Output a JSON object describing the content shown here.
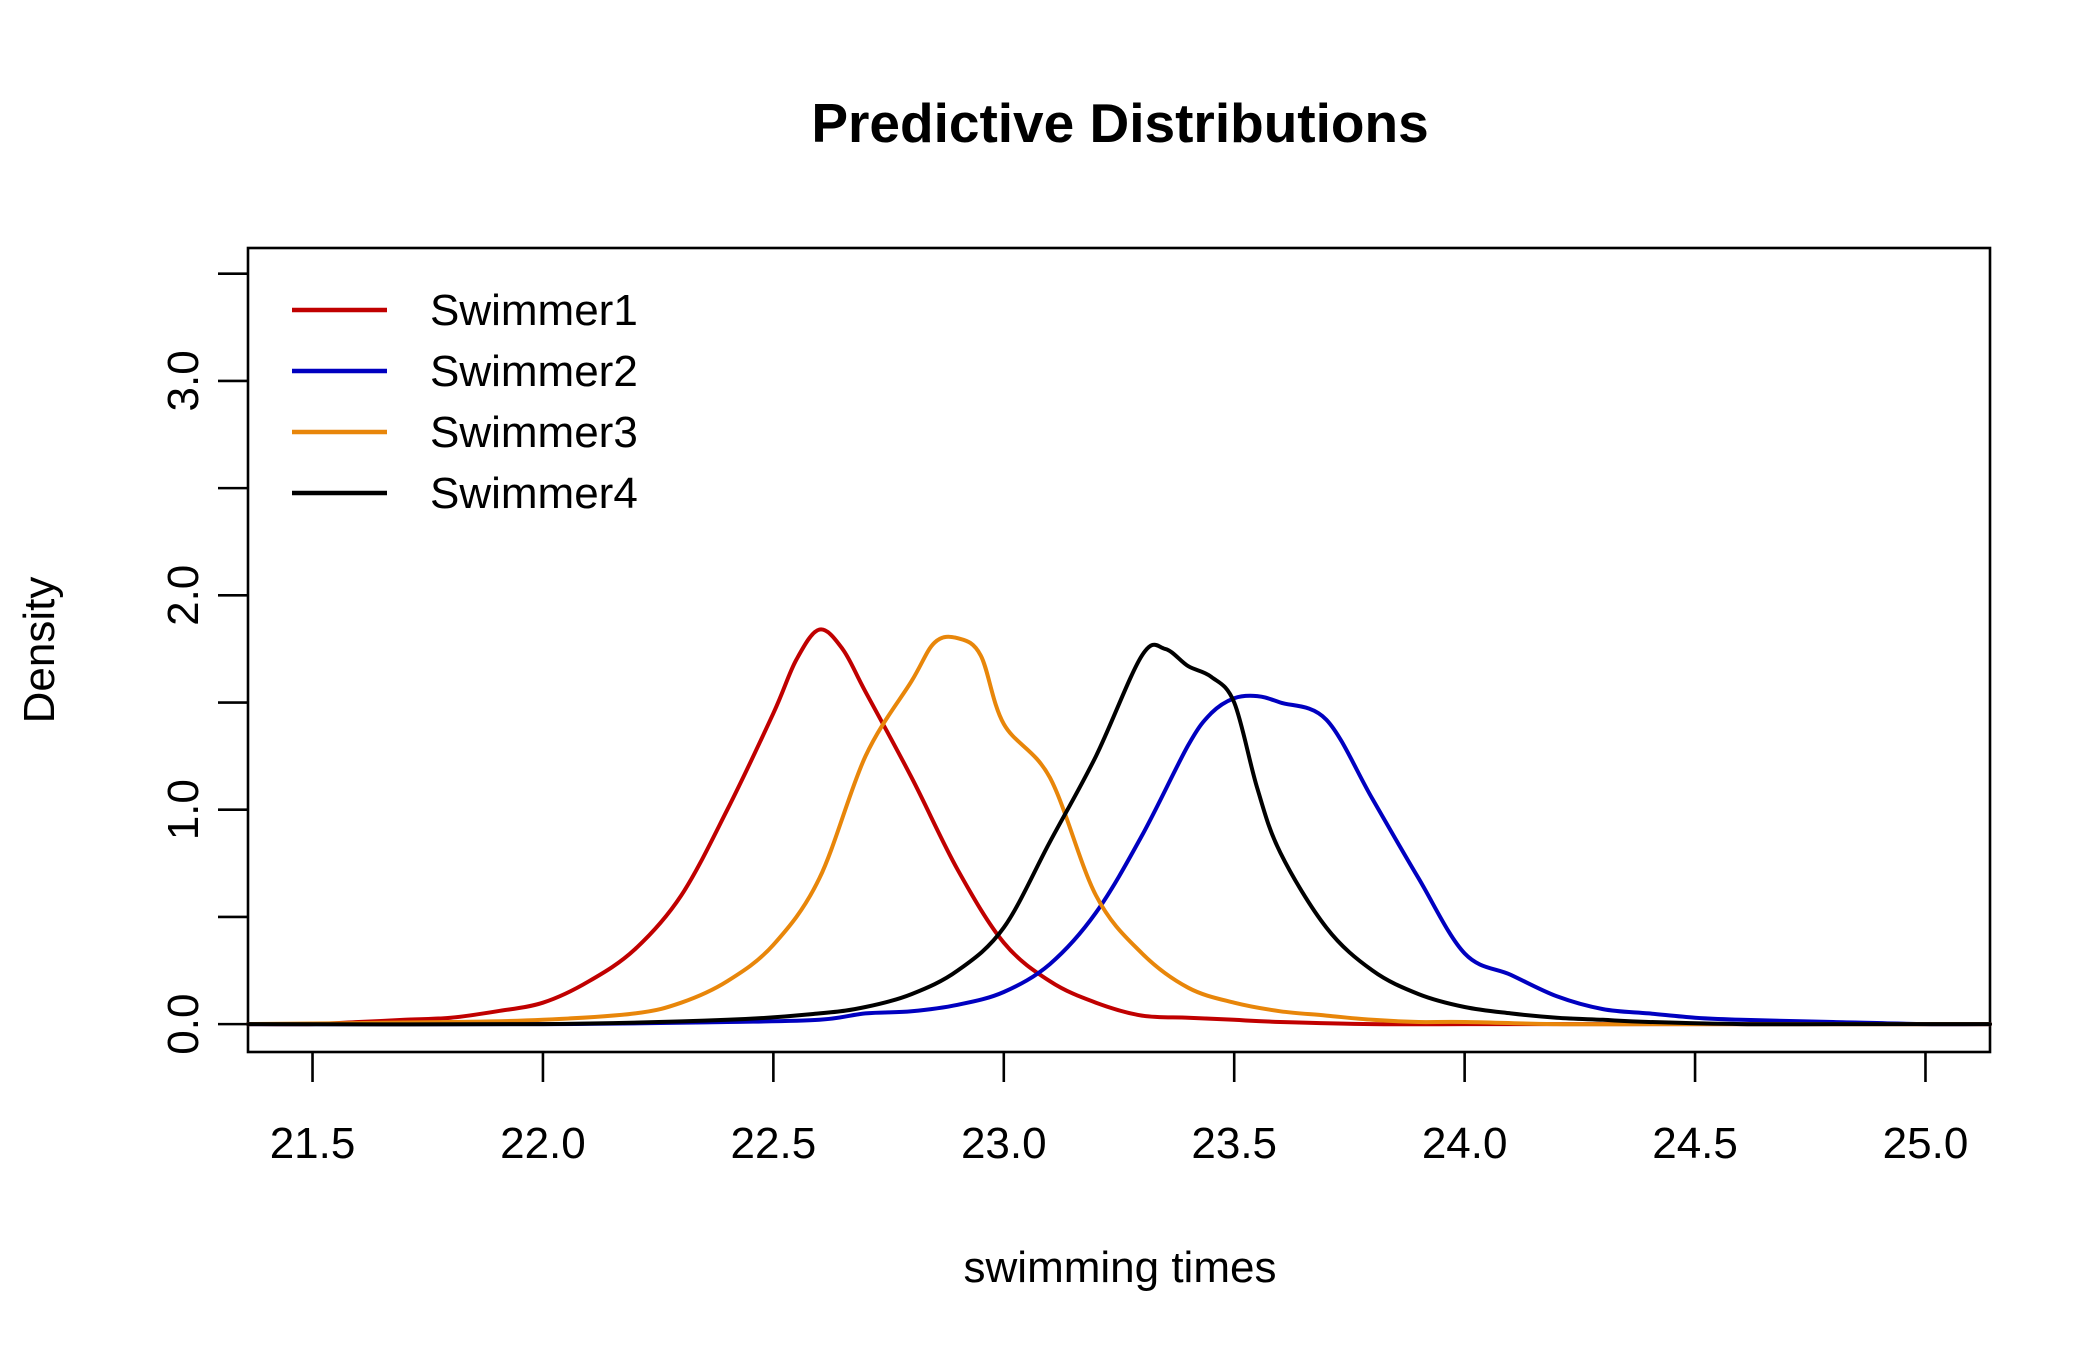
{
  "chart_data": {
    "type": "line",
    "title": "Predictive Distributions",
    "xlabel": "swimming times",
    "ylabel": "Density",
    "xlim": [
      21.36,
      25.14
    ],
    "ylim": [
      -0.13,
      3.62
    ],
    "x_ticks": [
      21.5,
      22.0,
      22.5,
      23.0,
      23.5,
      24.0,
      24.5,
      25.0
    ],
    "x_tick_labels": [
      "21.5",
      "22.0",
      "22.5",
      "23.0",
      "23.5",
      "24.0",
      "24.5",
      "25.0"
    ],
    "y_ticks": [
      0.0,
      0.5,
      1.0,
      1.5,
      2.0,
      2.5,
      3.0,
      3.5
    ],
    "y_tick_labels": [
      "0.0",
      "",
      "1.0",
      "",
      "2.0",
      "",
      "3.0",
      ""
    ],
    "grid": false,
    "legend_position": "top-left",
    "series": [
      {
        "name": "Swimmer1",
        "color": "#c00000",
        "x": [
          21.36,
          21.5,
          21.6,
          21.7,
          21.8,
          21.9,
          22.0,
          22.1,
          22.2,
          22.3,
          22.4,
          22.5,
          22.55,
          22.6,
          22.65,
          22.7,
          22.8,
          22.9,
          23.0,
          23.1,
          23.2,
          23.3,
          23.4,
          23.5,
          23.6,
          23.8,
          24.0,
          24.2,
          24.4,
          24.6,
          24.8,
          25.14
        ],
        "y": [
          0.0,
          0.0,
          0.01,
          0.02,
          0.03,
          0.06,
          0.1,
          0.2,
          0.35,
          0.6,
          1.0,
          1.45,
          1.7,
          1.84,
          1.75,
          1.55,
          1.15,
          0.72,
          0.38,
          0.2,
          0.1,
          0.04,
          0.03,
          0.02,
          0.01,
          0.0,
          0.0,
          0.0,
          0.0,
          0.0,
          0.0,
          0.0
        ]
      },
      {
        "name": "Swimmer2",
        "color": "#0000c0",
        "x": [
          21.36,
          22.0,
          22.4,
          22.6,
          22.7,
          22.8,
          22.9,
          23.0,
          23.1,
          23.2,
          23.3,
          23.4,
          23.45,
          23.5,
          23.55,
          23.6,
          23.7,
          23.8,
          23.9,
          24.0,
          24.1,
          24.2,
          24.3,
          24.4,
          24.5,
          24.6,
          24.8,
          25.0,
          25.14
        ],
        "y": [
          0.0,
          0.0,
          0.01,
          0.02,
          0.05,
          0.06,
          0.09,
          0.15,
          0.28,
          0.52,
          0.88,
          1.3,
          1.45,
          1.52,
          1.53,
          1.5,
          1.42,
          1.05,
          0.68,
          0.33,
          0.23,
          0.13,
          0.07,
          0.05,
          0.03,
          0.02,
          0.01,
          0.0,
          0.0
        ]
      },
      {
        "name": "Swimmer3",
        "color": "#e8860a",
        "x": [
          21.36,
          21.8,
          22.0,
          22.2,
          22.3,
          22.4,
          22.5,
          22.6,
          22.7,
          22.8,
          22.85,
          22.9,
          22.95,
          23.0,
          23.1,
          23.2,
          23.3,
          23.4,
          23.5,
          23.6,
          23.7,
          23.8,
          23.9,
          24.0,
          24.2,
          24.4,
          24.6,
          24.8,
          25.14
        ],
        "y": [
          0.0,
          0.01,
          0.02,
          0.05,
          0.1,
          0.2,
          0.37,
          0.68,
          1.25,
          1.6,
          1.78,
          1.8,
          1.72,
          1.4,
          1.15,
          0.6,
          0.33,
          0.17,
          0.1,
          0.06,
          0.04,
          0.02,
          0.01,
          0.01,
          0.0,
          0.0,
          0.0,
          0.0,
          0.0
        ]
      },
      {
        "name": "Swimmer4",
        "color": "#000000",
        "x": [
          21.36,
          22.0,
          22.4,
          22.6,
          22.7,
          22.8,
          22.9,
          23.0,
          23.1,
          23.2,
          23.3,
          23.35,
          23.4,
          23.45,
          23.5,
          23.55,
          23.6,
          23.7,
          23.8,
          23.9,
          24.0,
          24.1,
          24.2,
          24.3,
          24.4,
          24.6,
          24.8,
          25.14
        ],
        "y": [
          0.0,
          0.0,
          0.02,
          0.05,
          0.08,
          0.14,
          0.25,
          0.45,
          0.85,
          1.25,
          1.72,
          1.75,
          1.67,
          1.62,
          1.5,
          1.1,
          0.8,
          0.45,
          0.25,
          0.14,
          0.08,
          0.05,
          0.03,
          0.02,
          0.01,
          0.0,
          0.0,
          0.0
        ]
      }
    ]
  }
}
